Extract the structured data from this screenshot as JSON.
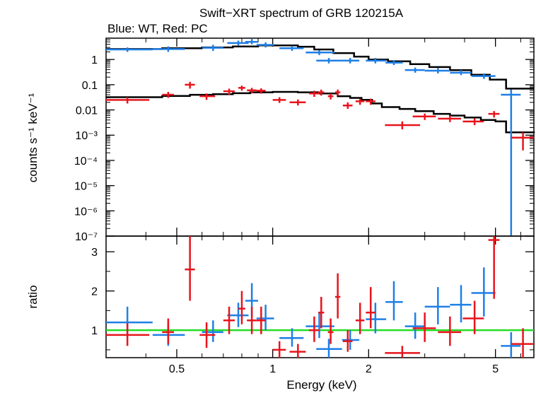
{
  "title": "Swift−XRT spectrum of GRB 120215A",
  "subtitle": "Blue: WT, Red: PC",
  "colors": {
    "wt": "#1f7fe6",
    "pc": "#e8141c",
    "model": "#000000",
    "unity": "#22dd22",
    "axis": "#000000"
  },
  "top_panel": {
    "ylabel": "counts s⁻¹ keV⁻¹",
    "ytick_labels": [
      "1",
      "0.1",
      "0.01",
      "10⁻³",
      "10⁻⁴",
      "10⁻⁵",
      "10⁻⁶",
      "10⁻⁷"
    ]
  },
  "bottom_panel": {
    "ylabel": "ratio",
    "ytick_labels": [
      "1",
      "2",
      "3"
    ],
    "xlabel": "Energy (keV)",
    "xtick_labels": [
      "0.5",
      "1",
      "2",
      "5"
    ]
  },
  "chart_data": [
    {
      "type": "scatter",
      "panel": "spectrum",
      "title": "Swift−XRT spectrum of GRB 120215A",
      "xlabel": "Energy (keV)",
      "ylabel": "counts s⁻¹ keV⁻¹",
      "xscale": "log",
      "yscale": "log",
      "xlim": [
        0.3,
        6.6
      ],
      "ylim": [
        1e-07,
        7
      ],
      "series": [
        {
          "name": "WT",
          "points": [
            {
              "x": 0.35,
              "xlo": 0.3,
              "xhi": 0.42,
              "y": 2.5,
              "ylo": 2.0,
              "yhi": 3.0
            },
            {
              "x": 0.47,
              "xlo": 0.42,
              "xhi": 0.53,
              "y": 2.6,
              "ylo": 2.0,
              "yhi": 3.3
            },
            {
              "x": 0.65,
              "xlo": 0.6,
              "xhi": 0.7,
              "y": 2.9,
              "ylo": 2.2,
              "yhi": 3.8
            },
            {
              "x": 0.78,
              "xlo": 0.72,
              "xhi": 0.84,
              "y": 4.5,
              "ylo": 3.6,
              "yhi": 5.6
            },
            {
              "x": 0.86,
              "xlo": 0.82,
              "xhi": 0.9,
              "y": 5.0,
              "ylo": 4.0,
              "yhi": 6.5
            },
            {
              "x": 0.95,
              "xlo": 0.89,
              "xhi": 1.01,
              "y": 3.8,
              "ylo": 3.0,
              "yhi": 4.8
            },
            {
              "x": 1.15,
              "xlo": 1.05,
              "xhi": 1.25,
              "y": 2.8,
              "ylo": 2.2,
              "yhi": 3.5
            },
            {
              "x": 1.4,
              "xlo": 1.27,
              "xhi": 1.56,
              "y": 1.9,
              "ylo": 1.5,
              "yhi": 2.3
            },
            {
              "x": 1.5,
              "xlo": 1.37,
              "xhi": 1.65,
              "y": 0.9,
              "ylo": 0.7,
              "yhi": 1.15
            },
            {
              "x": 1.75,
              "xlo": 1.65,
              "xhi": 1.87,
              "y": 0.9,
              "ylo": 0.7,
              "yhi": 1.15
            },
            {
              "x": 2.1,
              "xlo": 1.96,
              "xhi": 2.27,
              "y": 0.9,
              "ylo": 0.7,
              "yhi": 1.15
            },
            {
              "x": 2.4,
              "xlo": 2.26,
              "xhi": 2.56,
              "y": 0.75,
              "ylo": 0.6,
              "yhi": 0.95
            },
            {
              "x": 2.8,
              "xlo": 2.6,
              "xhi": 3.0,
              "y": 0.38,
              "ylo": 0.3,
              "yhi": 0.48
            },
            {
              "x": 3.3,
              "xlo": 3.0,
              "xhi": 3.6,
              "y": 0.36,
              "ylo": 0.28,
              "yhi": 0.46
            },
            {
              "x": 3.9,
              "xlo": 3.6,
              "xhi": 4.2,
              "y": 0.3,
              "ylo": 0.24,
              "yhi": 0.38
            },
            {
              "x": 4.6,
              "xlo": 4.2,
              "xhi": 5.0,
              "y": 0.22,
              "ylo": 0.17,
              "yhi": 0.28
            },
            {
              "x": 5.6,
              "xlo": 5.2,
              "xhi": 6.0,
              "y": 0.04,
              "ylo": 1e-07,
              "yhi": 0.065
            }
          ]
        },
        {
          "name": "PC",
          "points": [
            {
              "x": 0.35,
              "xlo": 0.3,
              "xhi": 0.41,
              "y": 0.025,
              "ylo": 0.018,
              "yhi": 0.032
            },
            {
              "x": 0.47,
              "xlo": 0.45,
              "xhi": 0.49,
              "y": 0.04,
              "ylo": 0.03,
              "yhi": 0.052
            },
            {
              "x": 0.55,
              "xlo": 0.53,
              "xhi": 0.57,
              "y": 0.1,
              "ylo": 0.07,
              "yhi": 0.13
            },
            {
              "x": 0.62,
              "xlo": 0.59,
              "xhi": 0.66,
              "y": 0.035,
              "ylo": 0.025,
              "yhi": 0.045
            },
            {
              "x": 0.73,
              "xlo": 0.7,
              "xhi": 0.76,
              "y": 0.055,
              "ylo": 0.04,
              "yhi": 0.07
            },
            {
              "x": 0.8,
              "xlo": 0.78,
              "xhi": 0.82,
              "y": 0.075,
              "ylo": 0.058,
              "yhi": 0.092
            },
            {
              "x": 0.86,
              "xlo": 0.83,
              "xhi": 0.89,
              "y": 0.06,
              "ylo": 0.045,
              "yhi": 0.075
            },
            {
              "x": 0.92,
              "xlo": 0.89,
              "xhi": 0.95,
              "y": 0.058,
              "ylo": 0.044,
              "yhi": 0.072
            },
            {
              "x": 1.05,
              "xlo": 1.0,
              "xhi": 1.1,
              "y": 0.025,
              "ylo": 0.019,
              "yhi": 0.032
            },
            {
              "x": 1.2,
              "xlo": 1.13,
              "xhi": 1.27,
              "y": 0.02,
              "ylo": 0.015,
              "yhi": 0.026
            },
            {
              "x": 1.35,
              "xlo": 1.3,
              "xhi": 1.4,
              "y": 0.045,
              "ylo": 0.033,
              "yhi": 0.058
            },
            {
              "x": 1.42,
              "xlo": 1.39,
              "xhi": 1.45,
              "y": 0.05,
              "ylo": 0.037,
              "yhi": 0.064
            },
            {
              "x": 1.52,
              "xlo": 1.49,
              "xhi": 1.55,
              "y": 0.035,
              "ylo": 0.026,
              "yhi": 0.045
            },
            {
              "x": 1.6,
              "xlo": 1.57,
              "xhi": 1.63,
              "y": 0.05,
              "ylo": 0.037,
              "yhi": 0.064
            },
            {
              "x": 1.72,
              "xlo": 1.66,
              "xhi": 1.78,
              "y": 0.015,
              "ylo": 0.011,
              "yhi": 0.02
            },
            {
              "x": 1.88,
              "xlo": 1.82,
              "xhi": 1.94,
              "y": 0.022,
              "ylo": 0.016,
              "yhi": 0.028
            },
            {
              "x": 2.03,
              "xlo": 1.96,
              "xhi": 2.1,
              "y": 0.022,
              "ylo": 0.016,
              "yhi": 0.028
            },
            {
              "x": 2.55,
              "xlo": 2.25,
              "xhi": 2.9,
              "y": 0.0025,
              "ylo": 0.0017,
              "yhi": 0.0035
            },
            {
              "x": 3.0,
              "xlo": 2.75,
              "xhi": 3.25,
              "y": 0.0055,
              "ylo": 0.004,
              "yhi": 0.0072
            },
            {
              "x": 3.6,
              "xlo": 3.3,
              "xhi": 3.9,
              "y": 0.0045,
              "ylo": 0.0033,
              "yhi": 0.006
            },
            {
              "x": 4.3,
              "xlo": 3.95,
              "xhi": 4.6,
              "y": 0.0035,
              "ylo": 0.0025,
              "yhi": 0.0047
            },
            {
              "x": 4.95,
              "xlo": 4.75,
              "xhi": 5.15,
              "y": 0.007,
              "ylo": 0.005,
              "yhi": 0.009
            },
            {
              "x": 6.1,
              "xlo": 5.6,
              "xhi": 6.6,
              "y": 0.0008,
              "ylo": 0.00025,
              "yhi": 0.0013
            }
          ]
        }
      ],
      "models": [
        {
          "name": "WT",
          "steps": [
            [
              0.3,
              2.6
            ],
            [
              0.45,
              2.8
            ],
            [
              0.6,
              3.0
            ],
            [
              0.75,
              3.3
            ],
            [
              0.9,
              3.6
            ],
            [
              1.2,
              3.2
            ],
            [
              1.35,
              2.5
            ],
            [
              1.55,
              1.8
            ],
            [
              1.8,
              1.3
            ],
            [
              2.0,
              1.0
            ],
            [
              2.3,
              0.85
            ],
            [
              2.7,
              0.65
            ],
            [
              3.1,
              0.5
            ],
            [
              3.6,
              0.38
            ],
            [
              4.2,
              0.25
            ],
            [
              4.8,
              0.16
            ],
            [
              5.4,
              0.07
            ],
            [
              6.6,
              0.07
            ]
          ]
        },
        {
          "name": "PC",
          "steps": [
            [
              0.3,
              0.032
            ],
            [
              0.45,
              0.036
            ],
            [
              0.55,
              0.04
            ],
            [
              0.65,
              0.042
            ],
            [
              0.75,
              0.046
            ],
            [
              0.85,
              0.05
            ],
            [
              1.0,
              0.052
            ],
            [
              1.2,
              0.05
            ],
            [
              1.4,
              0.045
            ],
            [
              1.6,
              0.035
            ],
            [
              1.75,
              0.03
            ],
            [
              1.9,
              0.025
            ],
            [
              2.05,
              0.018
            ],
            [
              2.2,
              0.013
            ],
            [
              2.5,
              0.011
            ],
            [
              2.8,
              0.009
            ],
            [
              3.2,
              0.007
            ],
            [
              3.6,
              0.006
            ],
            [
              4.0,
              0.005
            ],
            [
              4.5,
              0.004
            ],
            [
              5.0,
              0.0035
            ],
            [
              5.4,
              0.0013
            ],
            [
              6.6,
              0.0012
            ]
          ]
        }
      ]
    },
    {
      "type": "scatter",
      "panel": "ratio",
      "xlabel": "Energy (keV)",
      "ylabel": "ratio",
      "xscale": "log",
      "yscale": "linear",
      "xlim": [
        0.3,
        6.6
      ],
      "ylim": [
        0.3,
        3.4
      ],
      "reference_line": 1,
      "series": [
        {
          "name": "WT",
          "points": [
            {
              "x": 0.35,
              "xlo": 0.3,
              "xhi": 0.42,
              "y": 1.2,
              "ylo": 0.85,
              "yhi": 1.6
            },
            {
              "x": 0.47,
              "xlo": 0.42,
              "xhi": 0.53,
              "y": 0.88,
              "ylo": 0.6,
              "yhi": 1.15
            },
            {
              "x": 0.65,
              "xlo": 0.6,
              "xhi": 0.7,
              "y": 0.95,
              "ylo": 0.7,
              "yhi": 1.25
            },
            {
              "x": 0.78,
              "xlo": 0.72,
              "xhi": 0.84,
              "y": 1.38,
              "ylo": 1.08,
              "yhi": 1.7
            },
            {
              "x": 0.86,
              "xlo": 0.82,
              "xhi": 0.9,
              "y": 1.75,
              "ylo": 1.35,
              "yhi": 2.2
            },
            {
              "x": 0.95,
              "xlo": 0.89,
              "xhi": 1.01,
              "y": 1.3,
              "ylo": 1.0,
              "yhi": 1.65
            },
            {
              "x": 1.15,
              "xlo": 1.05,
              "xhi": 1.25,
              "y": 0.8,
              "ylo": 0.58,
              "yhi": 1.05
            },
            {
              "x": 1.4,
              "xlo": 1.27,
              "xhi": 1.56,
              "y": 1.1,
              "ylo": 0.8,
              "yhi": 1.45
            },
            {
              "x": 1.5,
              "xlo": 1.37,
              "xhi": 1.65,
              "y": 0.52,
              "ylo": 0.3,
              "yhi": 0.78
            },
            {
              "x": 1.75,
              "xlo": 1.65,
              "xhi": 1.87,
              "y": 0.75,
              "ylo": 0.5,
              "yhi": 1.0
            },
            {
              "x": 2.1,
              "xlo": 1.96,
              "xhi": 2.27,
              "y": 1.28,
              "ylo": 0.92,
              "yhi": 1.7
            },
            {
              "x": 2.4,
              "xlo": 2.26,
              "xhi": 2.56,
              "y": 1.72,
              "ylo": 1.25,
              "yhi": 2.25
            },
            {
              "x": 2.8,
              "xlo": 2.6,
              "xhi": 3.0,
              "y": 1.1,
              "ylo": 0.78,
              "yhi": 1.45
            },
            {
              "x": 3.3,
              "xlo": 3.0,
              "xhi": 3.6,
              "y": 1.6,
              "ylo": 1.15,
              "yhi": 2.1
            },
            {
              "x": 3.9,
              "xlo": 3.6,
              "xhi": 4.2,
              "y": 1.65,
              "ylo": 1.2,
              "yhi": 2.15
            },
            {
              "x": 4.6,
              "xlo": 4.2,
              "xhi": 5.0,
              "y": 1.95,
              "ylo": 1.35,
              "yhi": 2.6
            },
            {
              "x": 5.6,
              "xlo": 5.2,
              "xhi": 6.0,
              "y": 0.6,
              "ylo": 0.3,
              "yhi": 0.95
            }
          ]
        },
        {
          "name": "PC",
          "points": [
            {
              "x": 0.35,
              "xlo": 0.3,
              "xhi": 0.41,
              "y": 0.88,
              "ylo": 0.6,
              "yhi": 1.18
            },
            {
              "x": 0.47,
              "xlo": 0.45,
              "xhi": 0.49,
              "y": 0.95,
              "ylo": 0.65,
              "yhi": 1.3
            },
            {
              "x": 0.55,
              "xlo": 0.53,
              "xhi": 0.57,
              "y": 2.55,
              "ylo": 1.75,
              "yhi": 3.4
            },
            {
              "x": 0.62,
              "xlo": 0.59,
              "xhi": 0.66,
              "y": 0.88,
              "ylo": 0.55,
              "yhi": 1.2
            },
            {
              "x": 0.73,
              "xlo": 0.7,
              "xhi": 0.76,
              "y": 1.25,
              "ylo": 0.9,
              "yhi": 1.6
            },
            {
              "x": 0.8,
              "xlo": 0.78,
              "xhi": 0.82,
              "y": 1.55,
              "ylo": 1.15,
              "yhi": 2.0
            },
            {
              "x": 0.86,
              "xlo": 0.83,
              "xhi": 0.89,
              "y": 1.25,
              "ylo": 0.9,
              "yhi": 1.6
            },
            {
              "x": 0.92,
              "xlo": 0.89,
              "xhi": 0.95,
              "y": 1.25,
              "ylo": 0.9,
              "yhi": 1.6
            },
            {
              "x": 1.05,
              "xlo": 1.0,
              "xhi": 1.1,
              "y": 0.5,
              "ylo": 0.3,
              "yhi": 0.72
            },
            {
              "x": 1.2,
              "xlo": 1.13,
              "xhi": 1.27,
              "y": 0.45,
              "ylo": 0.3,
              "yhi": 0.65
            },
            {
              "x": 1.35,
              "xlo": 1.3,
              "xhi": 1.4,
              "y": 1.0,
              "ylo": 0.7,
              "yhi": 1.35
            },
            {
              "x": 1.42,
              "xlo": 1.39,
              "xhi": 1.45,
              "y": 1.45,
              "ylo": 1.05,
              "yhi": 1.85
            },
            {
              "x": 1.52,
              "xlo": 1.49,
              "xhi": 1.55,
              "y": 0.95,
              "ylo": 0.65,
              "yhi": 1.3
            },
            {
              "x": 1.6,
              "xlo": 1.57,
              "xhi": 1.63,
              "y": 1.85,
              "ylo": 1.3,
              "yhi": 2.45
            },
            {
              "x": 1.72,
              "xlo": 1.66,
              "xhi": 1.78,
              "y": 0.72,
              "ylo": 0.45,
              "yhi": 1.0
            },
            {
              "x": 1.88,
              "xlo": 1.82,
              "xhi": 1.94,
              "y": 1.25,
              "ylo": 0.9,
              "yhi": 1.7
            },
            {
              "x": 2.03,
              "xlo": 1.96,
              "xhi": 2.1,
              "y": 1.45,
              "ylo": 1.05,
              "yhi": 2.1
            },
            {
              "x": 2.55,
              "xlo": 2.25,
              "xhi": 2.9,
              "y": 0.42,
              "ylo": 0.3,
              "yhi": 0.6
            },
            {
              "x": 3.0,
              "xlo": 2.75,
              "xhi": 3.25,
              "y": 1.05,
              "ylo": 0.7,
              "yhi": 1.45
            },
            {
              "x": 3.6,
              "xlo": 3.3,
              "xhi": 3.9,
              "y": 0.95,
              "ylo": 0.6,
              "yhi": 1.35
            },
            {
              "x": 4.3,
              "xlo": 3.95,
              "xhi": 4.6,
              "y": 1.3,
              "ylo": 0.9,
              "yhi": 1.75
            },
            {
              "x": 4.95,
              "xlo": 4.75,
              "xhi": 5.15,
              "y": 3.3,
              "ylo": 1.8,
              "yhi": 3.4
            },
            {
              "x": 6.1,
              "xlo": 5.6,
              "xhi": 6.6,
              "y": 0.65,
              "ylo": 0.3,
              "yhi": 1.05
            }
          ]
        }
      ]
    }
  ]
}
